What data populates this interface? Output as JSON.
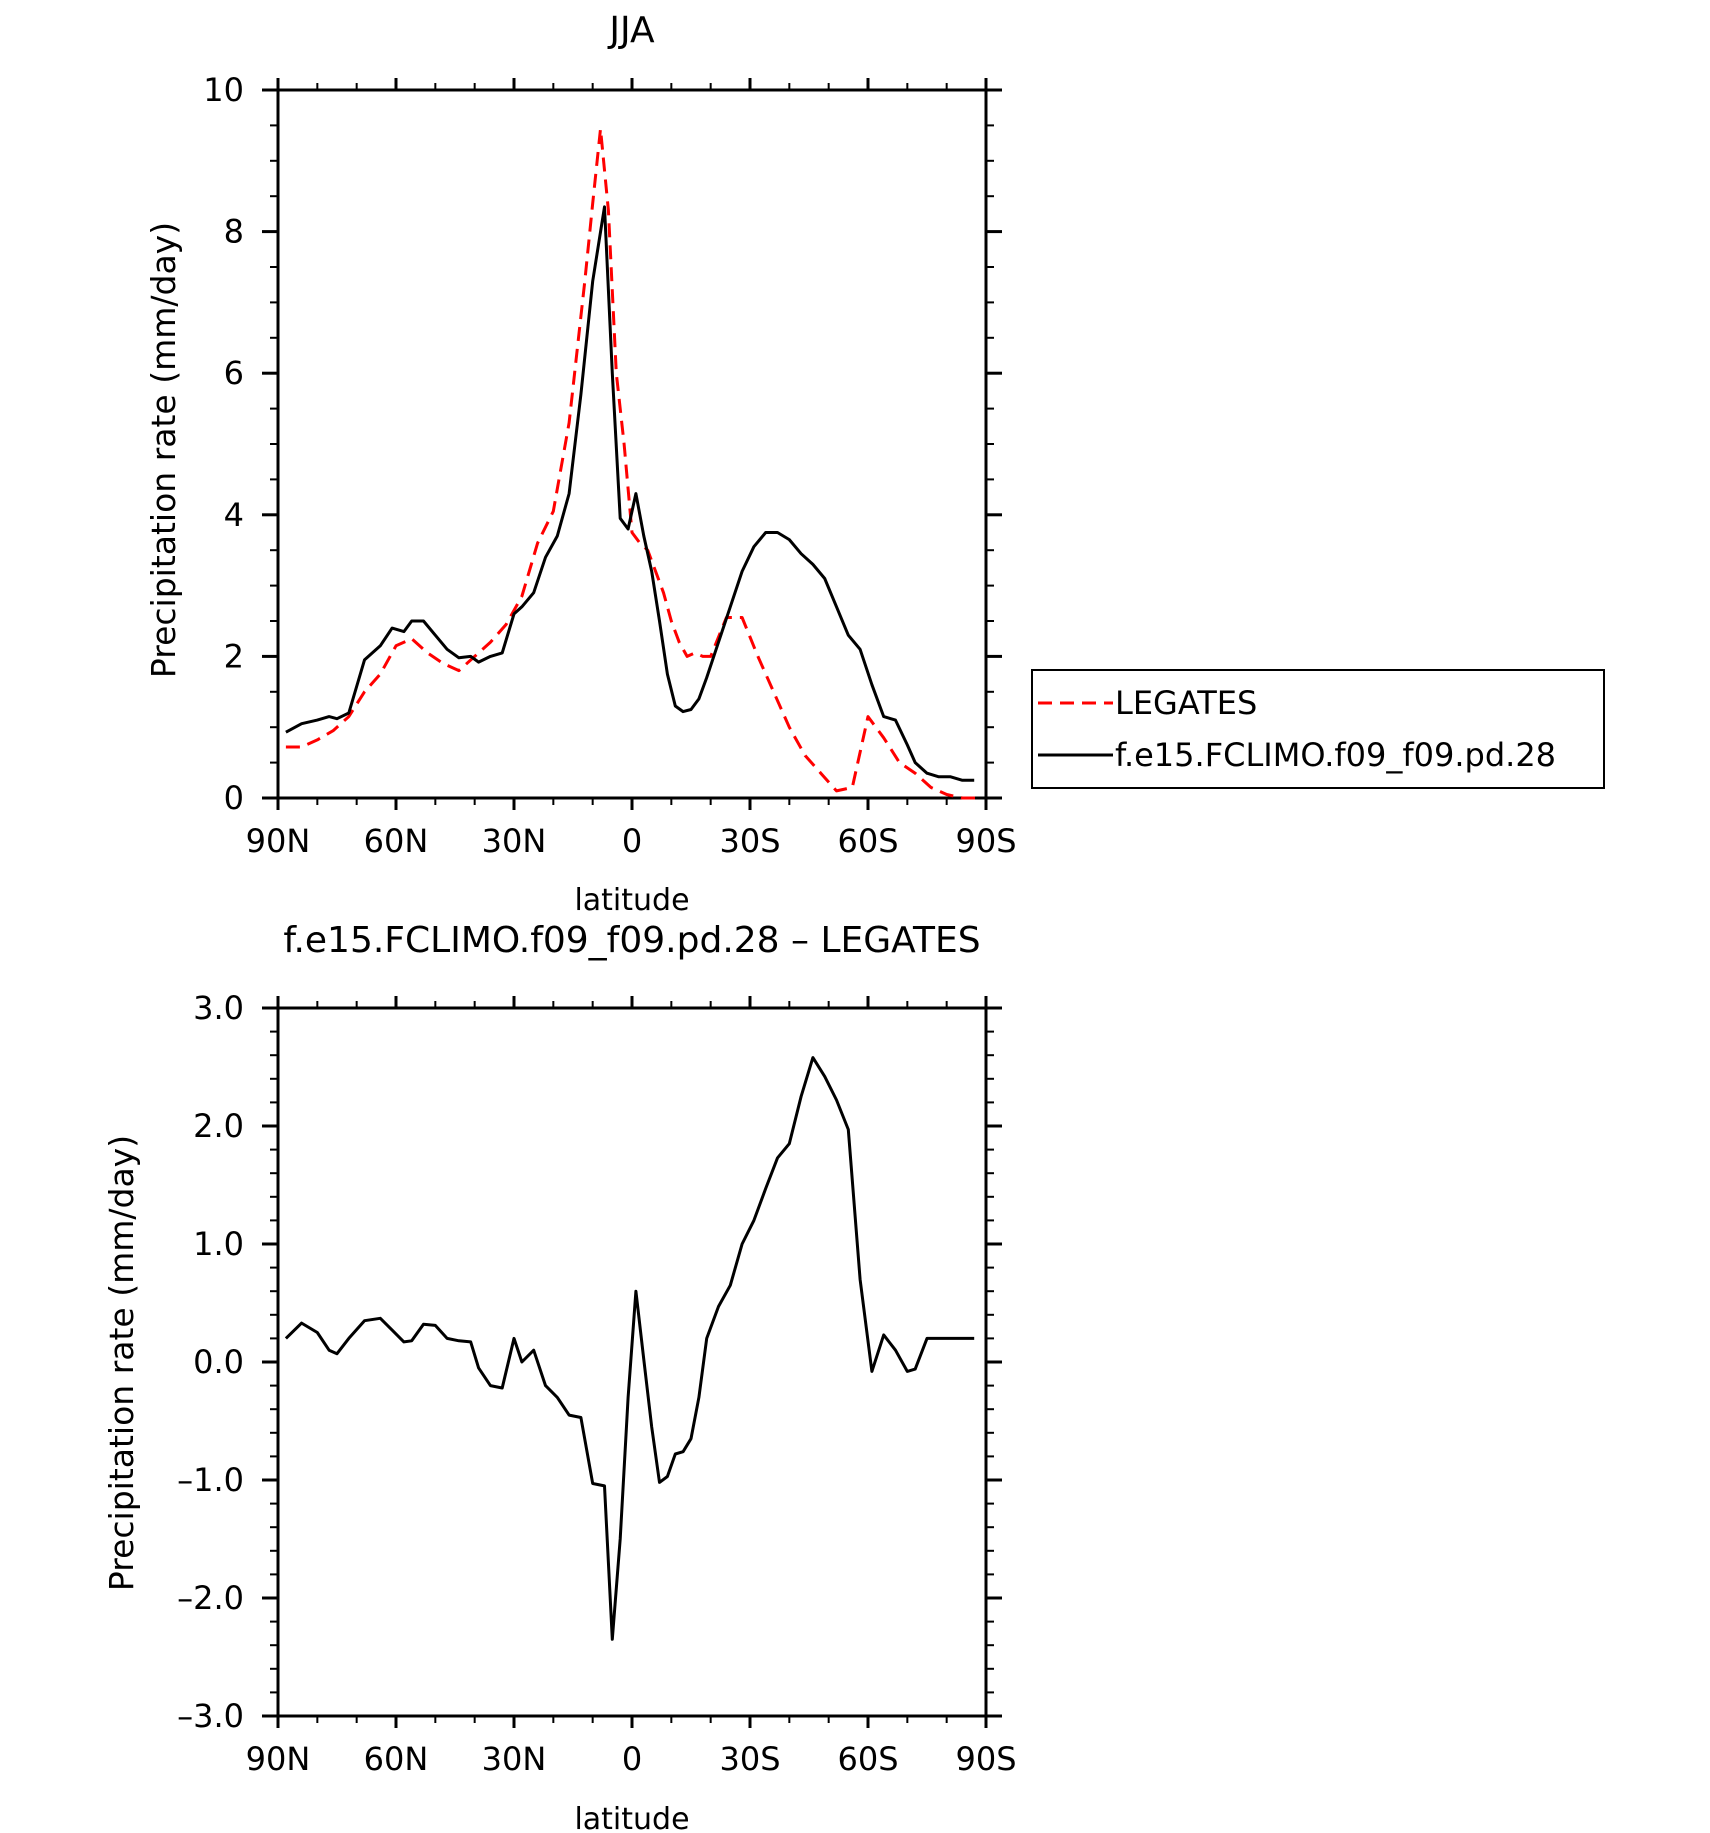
{
  "chart_data": [
    {
      "type": "line",
      "title": "JJA",
      "xlabel": "latitude",
      "ylabel": "Precipitation rate (mm/day)",
      "xlim": [
        90,
        -90
      ],
      "ylim": [
        0,
        10
      ],
      "x_ticks": [
        90,
        60,
        30,
        0,
        -30,
        -60,
        -90
      ],
      "x_tick_labels": [
        "90N",
        "60N",
        "30N",
        "0",
        "30S",
        "60S",
        "90S"
      ],
      "y_ticks": [
        0,
        2,
        4,
        6,
        8,
        10
      ],
      "y_tick_labels": [
        "0",
        "2",
        "4",
        "6",
        "8",
        "10"
      ],
      "legend_position": "right",
      "grid": false,
      "series": [
        {
          "name": "LEGATES",
          "color": "#ff0000",
          "dash": true,
          "x": [
            88,
            84,
            80,
            76,
            72,
            68,
            64,
            60,
            56,
            52,
            48,
            44,
            40,
            36,
            32,
            28,
            24,
            20,
            16,
            12,
            10,
            8,
            6,
            4,
            2,
            0,
            -2,
            -4,
            -6,
            -8,
            -10,
            -12,
            -14,
            -16,
            -18,
            -20,
            -24,
            -28,
            -32,
            -36,
            -40,
            -44,
            -48,
            -52,
            -56,
            -60,
            -64,
            -68,
            -72,
            -76,
            -80,
            -84,
            -88
          ],
          "y": [
            0.72,
            0.72,
            0.82,
            0.95,
            1.15,
            1.5,
            1.75,
            2.15,
            2.25,
            2.05,
            1.9,
            1.8,
            2.0,
            2.2,
            2.45,
            2.85,
            3.6,
            4.05,
            5.3,
            7.3,
            8.4,
            9.45,
            8.3,
            6.0,
            5.0,
            3.75,
            3.6,
            3.5,
            3.2,
            2.9,
            2.5,
            2.2,
            2.0,
            2.05,
            2.0,
            2.0,
            2.55,
            2.55,
            2.0,
            1.5,
            1.0,
            0.6,
            0.35,
            0.1,
            0.15,
            1.15,
            0.85,
            0.5,
            0.35,
            0.15,
            0.05,
            0.0,
            0.0
          ]
        },
        {
          "name": "f.e15.FCLIMO.f09_f09.pd.28",
          "color": "#000000",
          "dash": false,
          "x": [
            88,
            84,
            80,
            77,
            75,
            72,
            68,
            64,
            61,
            58,
            56,
            53,
            50,
            47,
            44,
            41,
            39,
            36,
            33,
            30,
            28,
            25,
            22,
            19,
            16,
            13,
            10,
            7,
            5,
            3,
            1,
            -1,
            -3,
            -5,
            -7,
            -9,
            -11,
            -13,
            -15,
            -17,
            -19,
            -22,
            -25,
            -28,
            -31,
            -34,
            -37,
            -40,
            -43,
            -46,
            -49,
            -52,
            -55,
            -58,
            -61,
            -64,
            -67,
            -70,
            -72,
            -75,
            -78,
            -81,
            -84,
            -87
          ],
          "y": [
            0.93,
            1.05,
            1.1,
            1.15,
            1.12,
            1.2,
            1.95,
            2.15,
            2.4,
            2.35,
            2.5,
            2.5,
            2.3,
            2.1,
            1.98,
            2.0,
            1.92,
            2.0,
            2.05,
            2.6,
            2.7,
            2.9,
            3.4,
            3.7,
            4.3,
            5.7,
            7.3,
            8.35,
            6.0,
            3.95,
            3.8,
            4.3,
            3.7,
            3.2,
            2.5,
            1.75,
            1.3,
            1.22,
            1.25,
            1.4,
            1.7,
            2.2,
            2.7,
            3.2,
            3.55,
            3.75,
            3.75,
            3.65,
            3.45,
            3.3,
            3.1,
            2.7,
            2.3,
            2.1,
            1.6,
            1.15,
            1.1,
            0.75,
            0.5,
            0.35,
            0.3,
            0.3,
            0.25,
            0.25
          ]
        }
      ]
    },
    {
      "type": "line",
      "title": "f.e15.FCLIMO.f09_f09.pd.28 – LEGATES",
      "xlabel": "latitude",
      "ylabel": "Precipitation rate (mm/day)",
      "xlim": [
        90,
        -90
      ],
      "ylim": [
        -3.0,
        3.0
      ],
      "x_ticks": [
        90,
        60,
        30,
        0,
        -30,
        -60,
        -90
      ],
      "x_tick_labels": [
        "90N",
        "60N",
        "30N",
        "0",
        "30S",
        "60S",
        "90S"
      ],
      "y_ticks": [
        -3.0,
        -2.0,
        -1.0,
        0.0,
        1.0,
        2.0,
        3.0
      ],
      "y_tick_labels": [
        "–3.0",
        "–2.0",
        "–1.0",
        "0.0",
        "1.0",
        "2.0",
        "3.0"
      ],
      "grid": false,
      "series": [
        {
          "color": "#000000",
          "dash": false,
          "x": [
            88,
            84,
            80,
            77,
            75,
            72,
            68,
            64,
            61,
            58,
            56,
            53,
            50,
            47,
            44,
            41,
            39,
            36,
            33,
            30,
            28,
            25,
            22,
            19,
            16,
            13,
            10,
            7,
            5,
            3,
            1,
            -1,
            -3,
            -5,
            -7,
            -9,
            -11,
            -13,
            -15,
            -17,
            -19,
            -22,
            -25,
            -28,
            -31,
            -34,
            -37,
            -40,
            -43,
            -46,
            -49,
            -52,
            -55,
            -58,
            -61,
            -64,
            -67,
            -70,
            -72,
            -75,
            -78,
            -81,
            -84,
            -87
          ],
          "y": [
            0.2,
            0.33,
            0.25,
            0.1,
            0.07,
            0.2,
            0.35,
            0.37,
            0.27,
            0.17,
            0.18,
            0.32,
            0.31,
            0.2,
            0.18,
            0.17,
            -0.05,
            -0.2,
            -0.22,
            0.2,
            0.0,
            0.1,
            -0.2,
            -0.3,
            -0.45,
            -0.47,
            -1.03,
            -1.05,
            -2.35,
            -1.5,
            -0.3,
            0.6,
            0.02,
            -0.55,
            -1.02,
            -0.97,
            -0.78,
            -0.76,
            -0.65,
            -0.3,
            0.2,
            0.47,
            0.65,
            1.0,
            1.2,
            1.47,
            1.73,
            1.85,
            2.25,
            2.58,
            2.42,
            2.22,
            1.97,
            0.7,
            -0.08,
            0.23,
            0.1,
            -0.08,
            -0.06,
            0.2,
            0.2,
            0.2,
            0.2,
            0.2
          ]
        }
      ]
    }
  ],
  "legend": {
    "entries": [
      "LEGATES",
      "f.e15.FCLIMO.f09_f09.pd.28"
    ]
  }
}
